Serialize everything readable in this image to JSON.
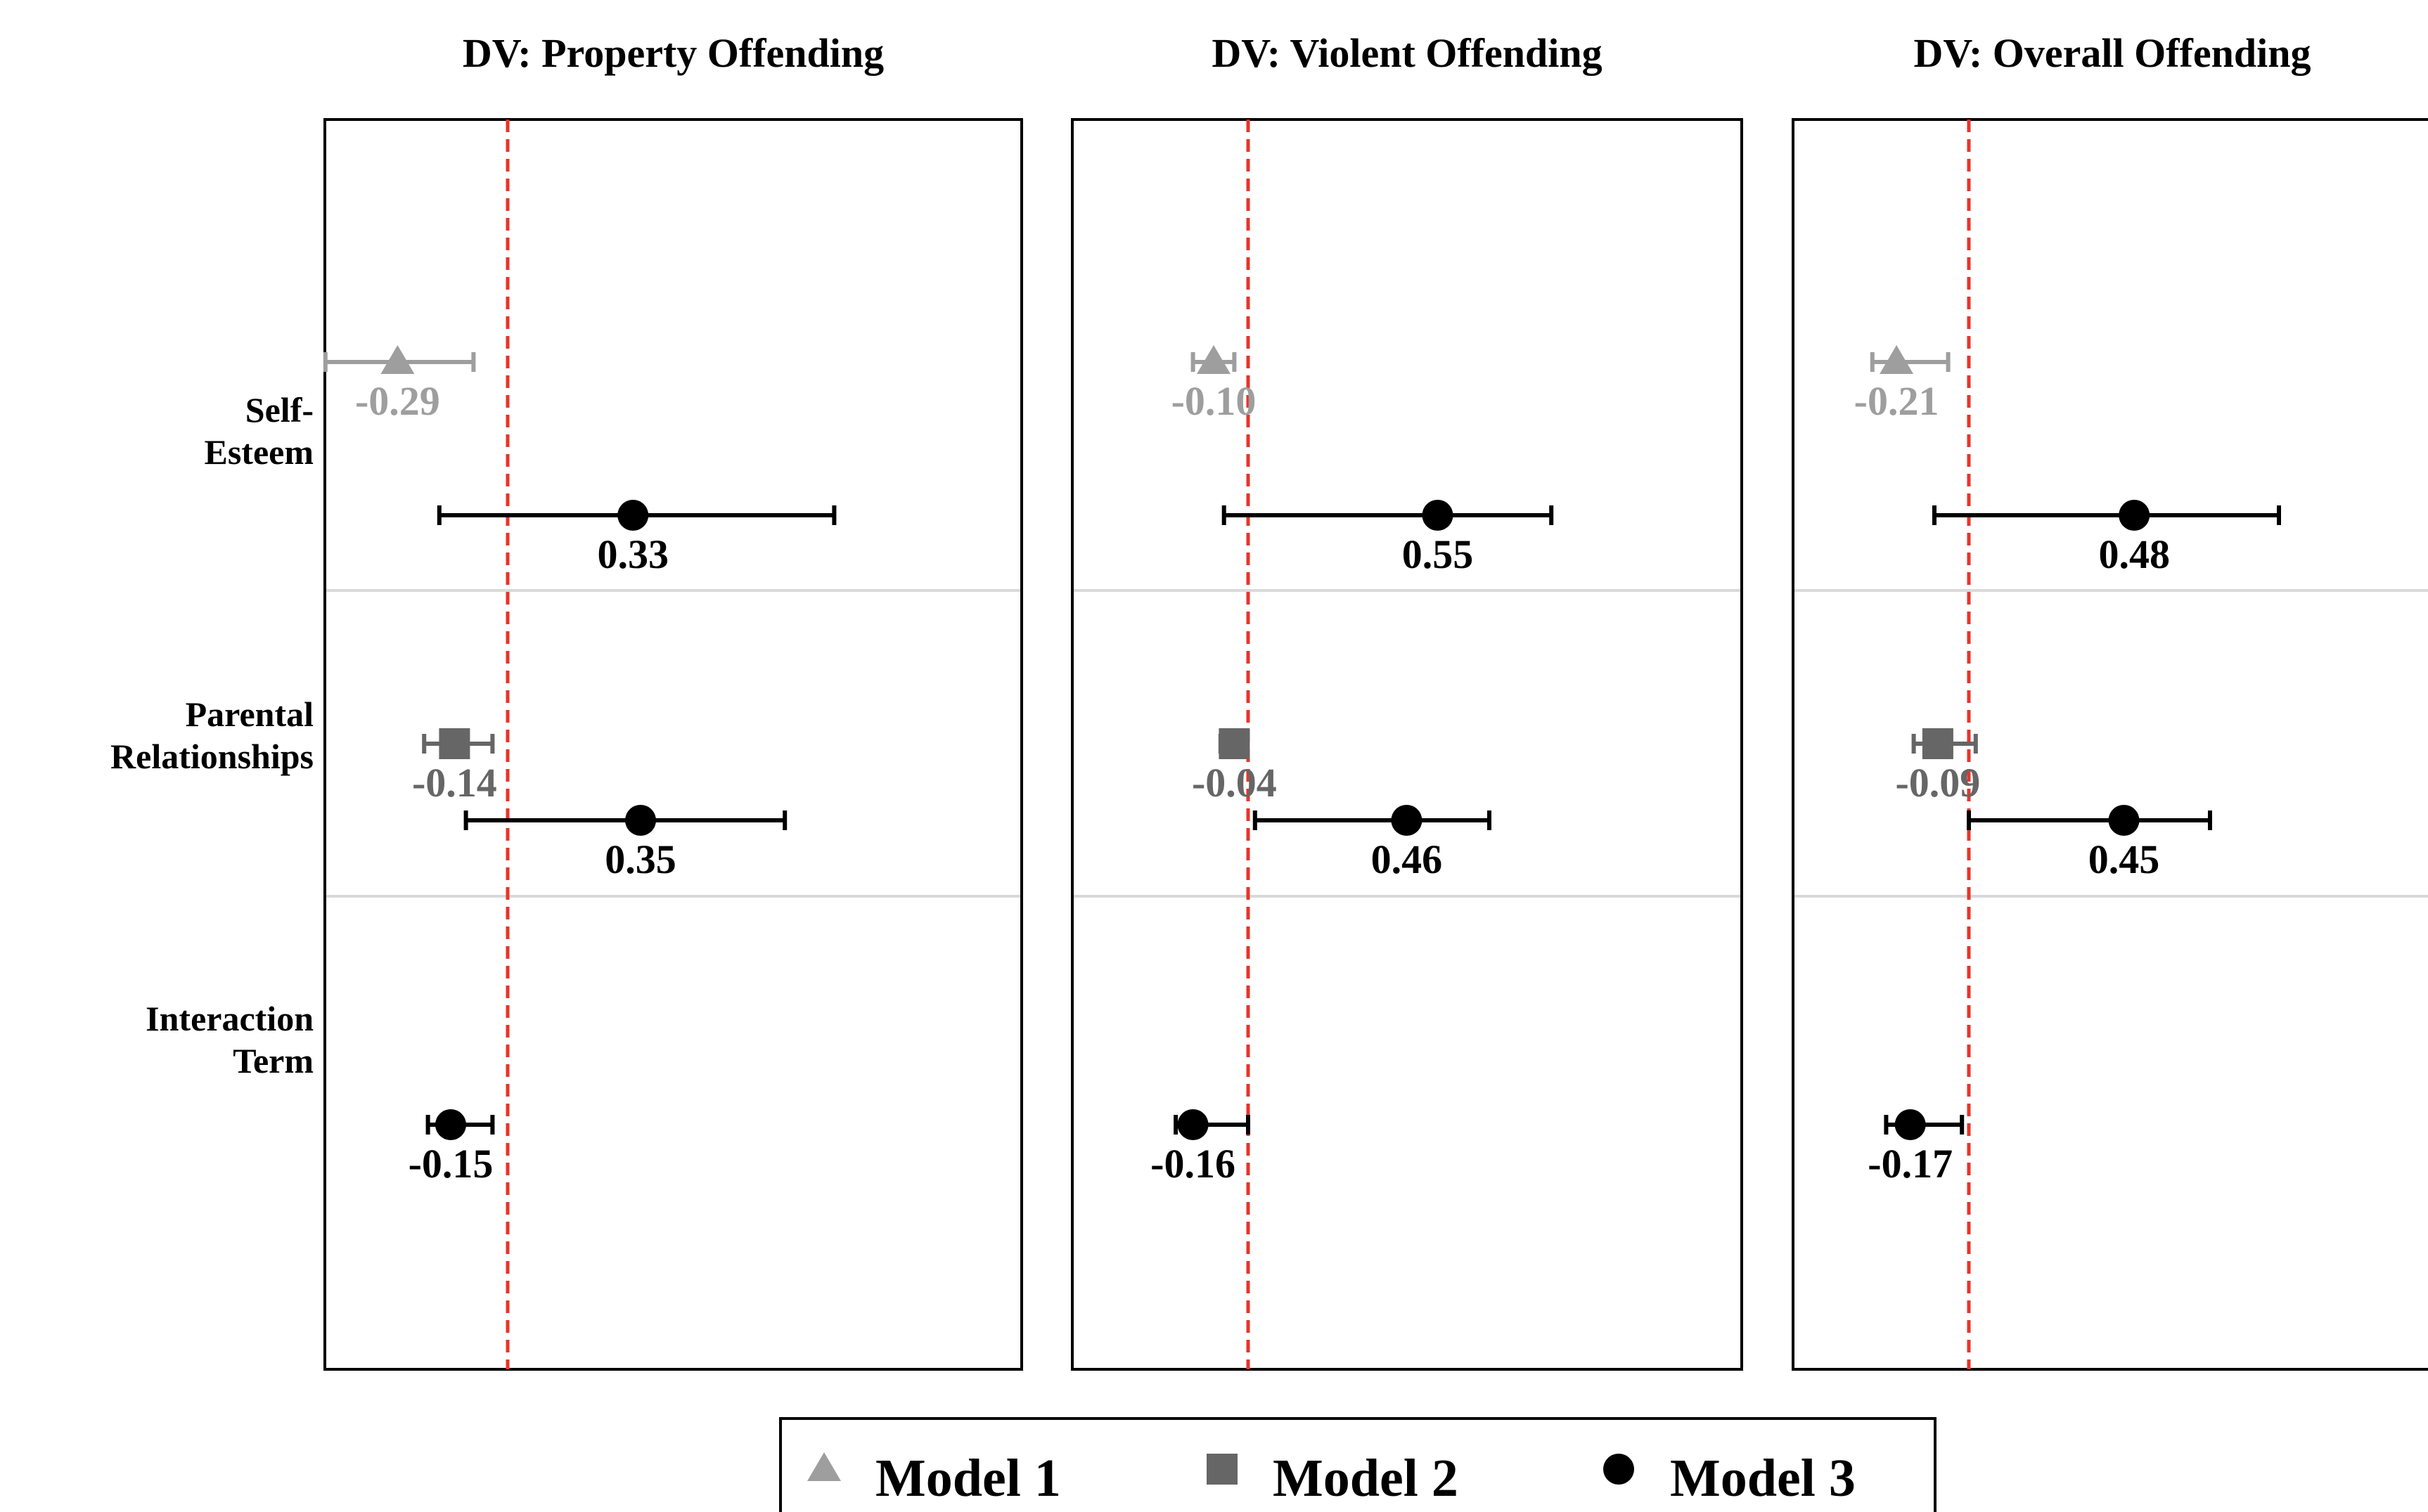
{
  "chart_data": {
    "type": "forest",
    "panels": [
      {
        "title": "DV: Property Offending",
        "estimates": [
          {
            "variable": "Self-Esteem",
            "model": "Model 1",
            "value": -0.29,
            "ci": [
              -0.48,
              -0.09
            ]
          },
          {
            "variable": "Self-Esteem",
            "model": "Model 3",
            "value": 0.33,
            "ci": [
              -0.18,
              0.86
            ]
          },
          {
            "variable": "Parental Relationships",
            "model": "Model 2",
            "value": -0.14,
            "ci": [
              -0.22,
              -0.04
            ]
          },
          {
            "variable": "Parental Relationships",
            "model": "Model 3",
            "value": 0.35,
            "ci": [
              -0.11,
              0.73
            ]
          },
          {
            "variable": "Interaction Term",
            "model": "Model 3",
            "value": -0.15,
            "ci": [
              -0.21,
              -0.04
            ]
          }
        ]
      },
      {
        "title": "DV: Violent Offending",
        "estimates": [
          {
            "variable": "Self-Esteem",
            "model": "Model 1",
            "value": -0.1,
            "ci": [
              -0.16,
              -0.04
            ]
          },
          {
            "variable": "Self-Esteem",
            "model": "Model 3",
            "value": 0.55,
            "ci": [
              -0.07,
              0.88
            ]
          },
          {
            "variable": "Parental Relationships",
            "model": "Model 2",
            "value": -0.04,
            "ci": [
              -0.08,
              -0.01
            ]
          },
          {
            "variable": "Parental Relationships",
            "model": "Model 3",
            "value": 0.46,
            "ci": [
              0.02,
              0.7
            ]
          },
          {
            "variable": "Interaction Term",
            "model": "Model 3",
            "value": -0.16,
            "ci": [
              -0.21,
              0.0
            ]
          }
        ]
      },
      {
        "title": "DV: Overall Offending",
        "estimates": [
          {
            "variable": "Self-Esteem",
            "model": "Model 1",
            "value": -0.21,
            "ci": [
              -0.28,
              -0.06
            ]
          },
          {
            "variable": "Self-Esteem",
            "model": "Model 3",
            "value": 0.48,
            "ci": [
              -0.1,
              0.9
            ]
          },
          {
            "variable": "Parental Relationships",
            "model": "Model 2",
            "value": -0.09,
            "ci": [
              -0.16,
              0.02
            ]
          },
          {
            "variable": "Parental Relationships",
            "model": "Model 3",
            "value": 0.45,
            "ci": [
              0.0,
              0.7
            ]
          },
          {
            "variable": "Interaction Term",
            "model": "Model 3",
            "value": -0.17,
            "ci": [
              -0.24,
              -0.02
            ]
          }
        ]
      }
    ],
    "rows": [
      {
        "label_lines": [
          "Self-",
          "Esteem"
        ]
      },
      {
        "label_lines": [
          "Parental",
          "Relationships"
        ]
      },
      {
        "label_lines": [
          "Interaction",
          "Term"
        ]
      }
    ],
    "legend": [
      {
        "label": "Model 1",
        "marker": "triangle",
        "color": "#9e9e9e"
      },
      {
        "label": "Model 2",
        "marker": "square",
        "color": "#666666"
      },
      {
        "label": "Model 3",
        "marker": "circle",
        "color": "#000000"
      }
    ],
    "reference_line": {
      "x": 0,
      "color": "#e8342a",
      "style": "dashed"
    },
    "legend_position": "bottom",
    "grid": false
  }
}
